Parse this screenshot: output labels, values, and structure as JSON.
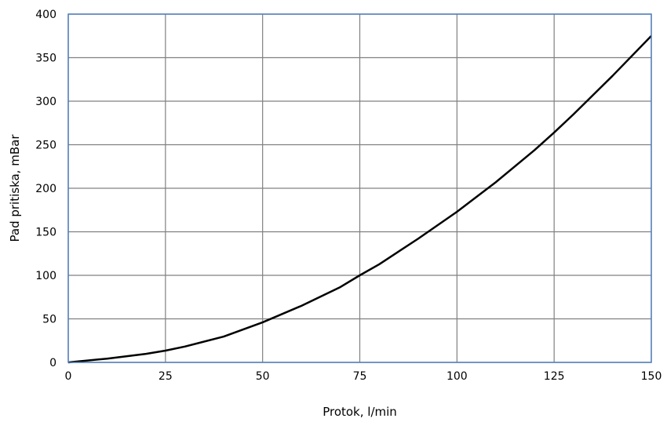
{
  "chart_data": {
    "type": "line",
    "title": "",
    "xlabel": "Protok, l/min",
    "ylabel": "Pad pritiska, mBar",
    "xlim": [
      0,
      150
    ],
    "ylim": [
      0,
      400
    ],
    "x_ticks": [
      "0",
      "25",
      "50",
      "75",
      "100",
      "125",
      "150"
    ],
    "y_ticks": [
      "0",
      "50",
      "100",
      "150",
      "200",
      "250",
      "300",
      "350",
      "400"
    ],
    "grid": true,
    "legend": "none",
    "series": [
      {
        "x": [
          0,
          10,
          20,
          25,
          30,
          40,
          50,
          60,
          70,
          75,
          80,
          90,
          100,
          110,
          120,
          125,
          130,
          140,
          150
        ],
        "y": [
          0,
          4.3,
          9.8,
          13.5,
          18.2,
          29.7,
          46,
          65,
          86.5,
          100,
          112.7,
          142,
          173,
          207,
          244,
          264,
          285,
          329,
          375
        ]
      }
    ],
    "colors": {
      "line": "#000000",
      "grid": "#808080",
      "frame": "#4f7fbf"
    }
  }
}
